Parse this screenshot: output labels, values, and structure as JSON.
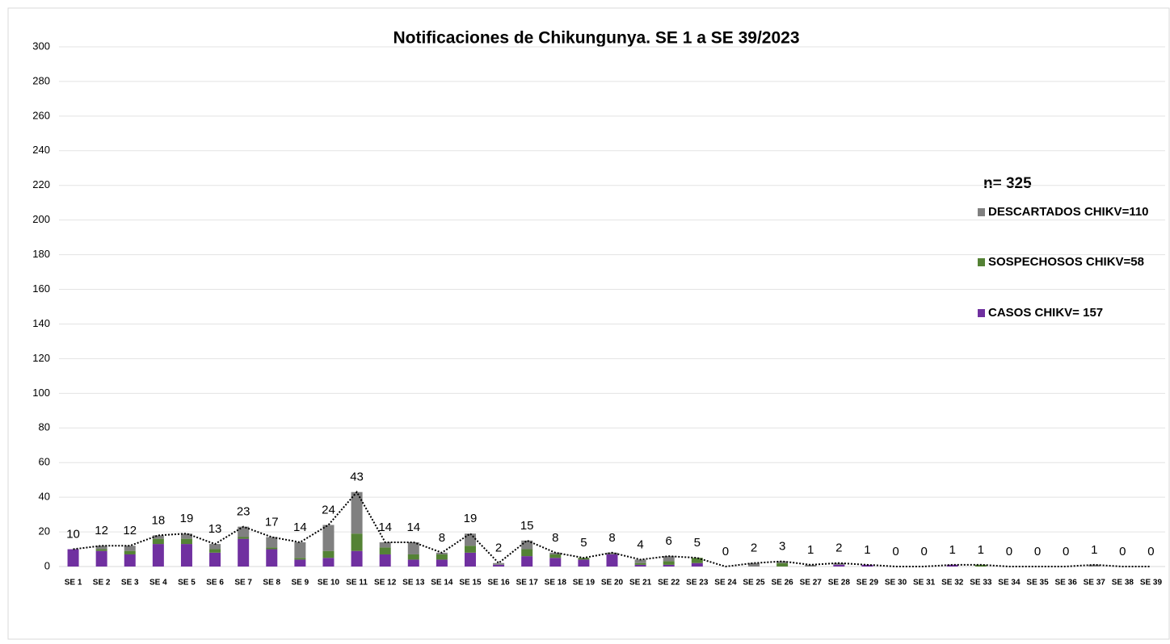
{
  "chart_data": {
    "type": "stacked_bar",
    "title": "Notificaciones de Chikungunya. SE  1 a SE 39/2023",
    "annotation": "n=  325",
    "categories": [
      "SE 1",
      "SE 2",
      "SE 3",
      "SE 4",
      "SE 5",
      "SE 6",
      "SE 7",
      "SE 8",
      "SE 9",
      "SE 10",
      "SE 11",
      "SE 12",
      "SE 13",
      "SE 14",
      "SE 15",
      "SE 16",
      "SE 17",
      "SE 18",
      "SE 19",
      "SE 20",
      "SE 21",
      "SE 22",
      "SE 23",
      "SE 24",
      "SE 25",
      "SE 26",
      "SE 27",
      "SE 28",
      "SE 29",
      "SE 30",
      "SE 31",
      "SE 32",
      "SE 33",
      "SE 34",
      "SE 35",
      "SE 36",
      "SE 37",
      "SE 38",
      "SE 39"
    ],
    "series": [
      {
        "name": "CASOS CHIKV= 157",
        "color": "#7030a0",
        "values": [
          10,
          9,
          7,
          13,
          13,
          8,
          16,
          10,
          4,
          5,
          9,
          7,
          4,
          4,
          8,
          1,
          6,
          5,
          4,
          7,
          1,
          1,
          2,
          0,
          0,
          0,
          0,
          1,
          1,
          0,
          0,
          1,
          0,
          0,
          0,
          0,
          0,
          0,
          0
        ]
      },
      {
        "name": "SOSPECHOSOS CHIKV=58",
        "color": "#548235",
        "values": [
          0,
          1,
          2,
          3,
          3,
          2,
          1,
          1,
          1,
          4,
          10,
          4,
          3,
          3,
          4,
          0,
          4,
          2,
          1,
          0,
          1,
          2,
          3,
          0,
          0,
          2,
          0,
          0,
          0,
          0,
          0,
          0,
          1,
          0,
          0,
          0,
          0,
          0,
          0
        ]
      },
      {
        "name": "DESCARTADOS CHIKV=110",
        "color": "#808080",
        "values": [
          0,
          2,
          3,
          2,
          3,
          3,
          6,
          6,
          9,
          15,
          24,
          3,
          7,
          1,
          7,
          1,
          5,
          1,
          0,
          1,
          2,
          3,
          0,
          0,
          2,
          1,
          1,
          1,
          0,
          0,
          0,
          0,
          0,
          0,
          0,
          0,
          1,
          0,
          0
        ]
      }
    ],
    "totals": [
      10,
      12,
      12,
      18,
      19,
      13,
      23,
      17,
      14,
      24,
      43,
      14,
      14,
      8,
      19,
      2,
      15,
      8,
      5,
      8,
      4,
      6,
      5,
      0,
      2,
      3,
      1,
      2,
      1,
      0,
      0,
      1,
      1,
      0,
      0,
      0,
      1,
      0,
      0
    ],
    "ylim": [
      0,
      300
    ],
    "yticks": [
      0,
      20,
      40,
      60,
      80,
      100,
      120,
      140,
      160,
      180,
      200,
      220,
      240,
      260,
      280,
      300
    ],
    "grid": true
  }
}
